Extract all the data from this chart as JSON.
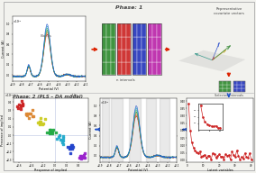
{
  "phase1_label": "Phase: 1",
  "phase2_label": "Phase: 2 (PLS – DA model)",
  "n_intervals_label": "n intervals",
  "selected_intervals_label": "Selected intervals",
  "representative_label": "Representative\ncovariate vectors",
  "scores_xlabel": "Response of implied",
  "scores_ylabel": "Presence of implied",
  "potential_xlabel": "Potential (V)",
  "current_ylabel": "Current (A)",
  "latent_xlabel": "Latent variables",
  "importance_ylabel": "Importance",
  "blanks_label": "Blanks",
  "bg_color": "#f2f2ee",
  "panel_bg": "#ffffff",
  "arrow_red": "#dd2200",
  "arrow_blue": "#2255cc",
  "grid_colors_top": [
    "#2d8a2d",
    "#cc2222",
    "#2233bb",
    "#bb22aa"
  ],
  "grid_colors_sel": [
    "#2d8a2d",
    "#2233bb"
  ],
  "volt_colors": [
    "#cc2222",
    "#dd7733",
    "#228822",
    "#33aa66",
    "#33aacc",
    "#2255cc"
  ],
  "score_colors": [
    "#cc2222",
    "#dd8833",
    "#cccc22",
    "#22aa44",
    "#22aacc",
    "#2244cc",
    "#9922cc"
  ],
  "inset_box_color": "#cccccc",
  "divider_color": "#bbbbbb",
  "text_color": "#444444",
  "axis_label_size": 2.5,
  "tick_size": 2.0
}
